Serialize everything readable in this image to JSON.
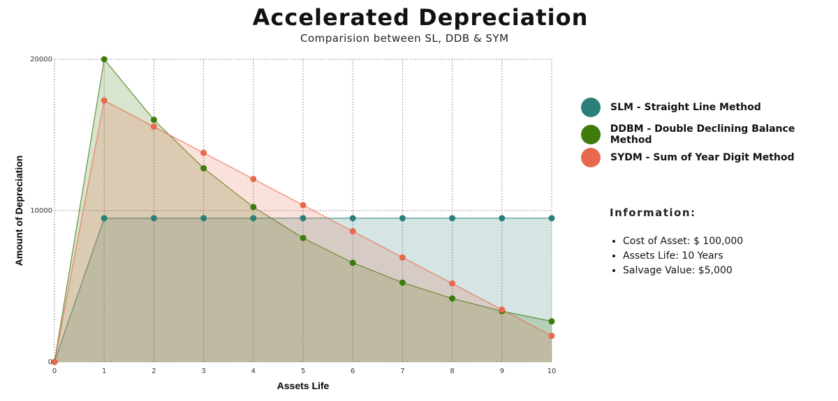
{
  "chart_data": {
    "type": "area",
    "title": "Accelerated Depreciation",
    "subtitle": "Comparision between SL, DDB & SYM",
    "xlabel": "Assets Life",
    "ylabel": "Amount of Depreciation",
    "x": [
      0,
      1,
      2,
      3,
      4,
      5,
      6,
      7,
      8,
      9,
      10
    ],
    "xlim": [
      0,
      10
    ],
    "ylim": [
      0,
      20000
    ],
    "yticks": [
      0,
      10000,
      20000
    ],
    "grid": true,
    "legend_position": "right",
    "series": [
      {
        "name": "SLM - Straight Line Method",
        "color": "#2a7f78",
        "values": [
          0,
          9500,
          9500,
          9500,
          9500,
          9500,
          9500,
          9500,
          9500,
          9500,
          9500
        ]
      },
      {
        "name": "DDBM - Double Declining Balance Method",
        "color": "#3f7a0c",
        "values": [
          0,
          20000,
          16000,
          12800,
          10240,
          8192,
          6554,
          5243,
          4194,
          3355,
          2684
        ]
      },
      {
        "name": "SYDM - Sum of Year Digit Method",
        "color": "#e8694c",
        "values": [
          0,
          17273,
          15545,
          13818,
          12091,
          10364,
          8636,
          6909,
          5182,
          3455,
          1727
        ]
      }
    ]
  },
  "info": {
    "title": "Information:",
    "items": [
      "Cost of Asset: $ 100,000",
      "Assets Life: 10 Years",
      "Salvage Value:  $5,000"
    ]
  }
}
